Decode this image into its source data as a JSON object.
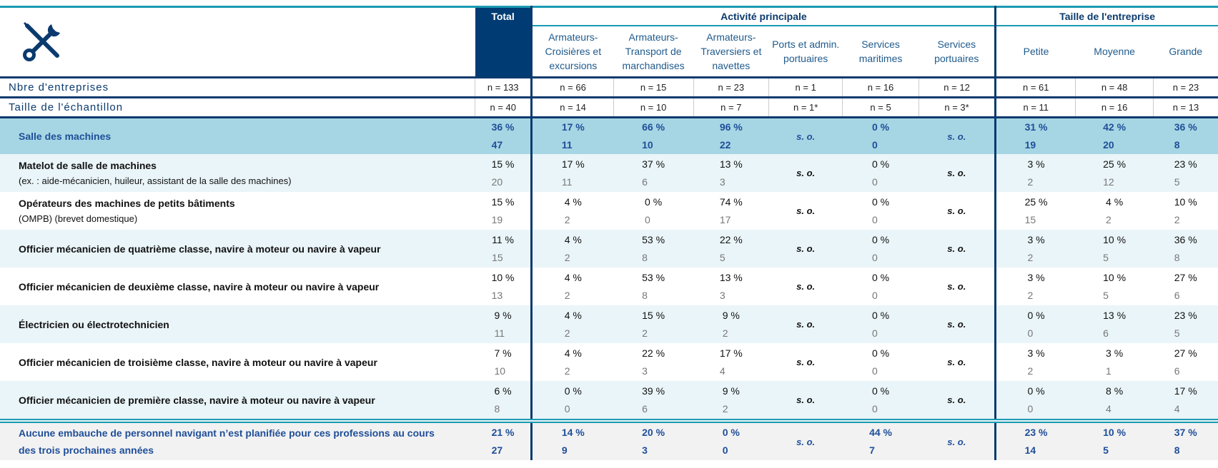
{
  "header": {
    "total": "Total",
    "groups": [
      "Activité principale",
      "Taille de l'entreprise"
    ],
    "columns": [
      "Armateurs-Croisières et excursions",
      "Armateurs-Transport de marchandises",
      "Armateurs-Traversiers et navettes",
      "Ports et admin. portuaires",
      "Services maritimes",
      "Services portuaires",
      "Petite",
      "Moyenne",
      "Grande"
    ]
  },
  "meta_rows": [
    {
      "label": "Nbre d'entreprises",
      "cells": [
        "n = 133",
        "n = 66",
        "n = 15",
        "n = 23",
        "n = 1",
        "n = 16",
        "n = 12",
        "n = 61",
        "n = 48",
        "n = 23"
      ]
    },
    {
      "label": "Taille de l'échantillon",
      "cells": [
        "n = 40",
        "n = 14",
        "n = 10",
        "n = 7",
        "n = 1*",
        "n = 5",
        "n = 3*",
        "n = 11",
        "n = 16",
        "n = 13"
      ]
    }
  ],
  "section": {
    "label": "Salle des machines",
    "cells": [
      [
        "36 %",
        "47"
      ],
      [
        "17 %",
        "11"
      ],
      [
        "66 %",
        "10"
      ],
      [
        "96 %",
        "22"
      ],
      [
        "s. o."
      ],
      [
        "0 %",
        "0"
      ],
      [
        "s. o."
      ],
      [
        "31 %",
        "19"
      ],
      [
        "42 %",
        "20"
      ],
      [
        "36 %",
        "8"
      ]
    ]
  },
  "rows": [
    {
      "label": "Matelot de salle de machines",
      "note": "(ex. : aide-mécanicien, huileur, assistant de la salle des machines)",
      "cells": [
        [
          "15 %",
          "20"
        ],
        [
          "17 %",
          "11"
        ],
        [
          "37 %",
          "6"
        ],
        [
          "13 %",
          "3"
        ],
        [
          "s. o."
        ],
        [
          "0 %",
          "0"
        ],
        [
          "s. o."
        ],
        [
          "3 %",
          "2"
        ],
        [
          "25 %",
          "12"
        ],
        [
          "23 %",
          "5"
        ]
      ]
    },
    {
      "label": "Opérateurs des machines de petits bâtiments",
      "note": "(OMPB) (brevet domestique)",
      "cells": [
        [
          "15 %",
          "19"
        ],
        [
          "4 %",
          "2"
        ],
        [
          "0 %",
          "0"
        ],
        [
          "74 %",
          "17"
        ],
        [
          "s. o."
        ],
        [
          "0 %",
          "0"
        ],
        [
          "s. o."
        ],
        [
          "25 %",
          "15"
        ],
        [
          "4 %",
          "2"
        ],
        [
          "10 %",
          "2"
        ]
      ]
    },
    {
      "label": "Officier mécanicien de quatrième classe, navire à moteur ou navire à vapeur",
      "cells": [
        [
          "11 %",
          "15"
        ],
        [
          "4 %",
          "2"
        ],
        [
          "53 %",
          "8"
        ],
        [
          "22 %",
          "5"
        ],
        [
          "s. o."
        ],
        [
          "0 %",
          "0"
        ],
        [
          "s. o."
        ],
        [
          "3 %",
          "2"
        ],
        [
          "10 %",
          "5"
        ],
        [
          "36 %",
          "8"
        ]
      ]
    },
    {
      "label": "Officier mécanicien de deuxième classe, navire à moteur ou navire à vapeur",
      "cells": [
        [
          "10 %",
          "13"
        ],
        [
          "4 %",
          "2"
        ],
        [
          "53 %",
          "8"
        ],
        [
          "13 %",
          "3"
        ],
        [
          "s. o."
        ],
        [
          "0 %",
          "0"
        ],
        [
          "s. o."
        ],
        [
          "3 %",
          "2"
        ],
        [
          "10 %",
          "5"
        ],
        [
          "27 %",
          "6"
        ]
      ]
    },
    {
      "label": "Électricien ou électrotechnicien",
      "cells": [
        [
          "9 %",
          "11"
        ],
        [
          "4 %",
          "2"
        ],
        [
          "15 %",
          "2"
        ],
        [
          "9 %",
          "2"
        ],
        [
          "s. o."
        ],
        [
          "0 %",
          "0"
        ],
        [
          "s. o."
        ],
        [
          "0 %",
          "0"
        ],
        [
          "13 %",
          "6"
        ],
        [
          "23 %",
          "5"
        ]
      ]
    },
    {
      "label": "Officier mécanicien de troisième classe, navire à moteur ou navire à vapeur",
      "cells": [
        [
          "7 %",
          "10"
        ],
        [
          "4 %",
          "2"
        ],
        [
          "22 %",
          "3"
        ],
        [
          "17 %",
          "4"
        ],
        [
          "s. o."
        ],
        [
          "0 %",
          "0"
        ],
        [
          "s. o."
        ],
        [
          "3 %",
          "2"
        ],
        [
          "3 %",
          "1"
        ],
        [
          "27 %",
          "6"
        ]
      ]
    },
    {
      "label": "Officier mécanicien de première classe, navire à moteur ou navire à vapeur",
      "cells": [
        [
          "6 %",
          "8"
        ],
        [
          "0 %",
          "0"
        ],
        [
          "39 %",
          "6"
        ],
        [
          "9 %",
          "2"
        ],
        [
          "s. o."
        ],
        [
          "0 %",
          "0"
        ],
        [
          "s. o."
        ],
        [
          "0 %",
          "0"
        ],
        [
          "8 %",
          "4"
        ],
        [
          "17 %",
          "4"
        ]
      ]
    }
  ],
  "footer": {
    "label": "Aucune embauche de personnel navigant n’est planifiée pour ces professions au cours des trois prochaines années",
    "cells": [
      [
        "21 %",
        "27"
      ],
      [
        "14 %",
        "9"
      ],
      [
        "20 %",
        "3"
      ],
      [
        "0 %",
        "0"
      ],
      [
        "s. o."
      ],
      [
        "44 %",
        "7"
      ],
      [
        "s. o."
      ],
      [
        "23 %",
        "14"
      ],
      [
        "10 %",
        "5"
      ],
      [
        "37 %",
        "8"
      ]
    ]
  }
}
